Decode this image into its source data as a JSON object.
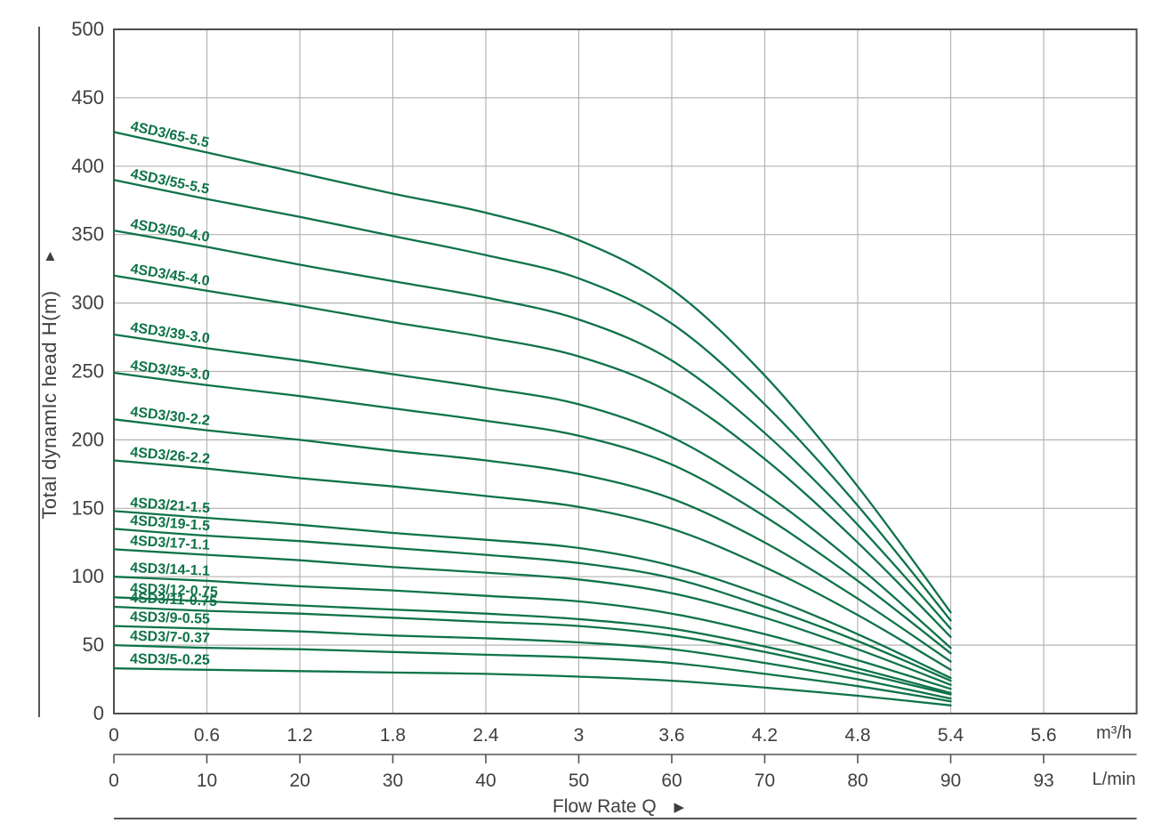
{
  "y_axis": {
    "title": "Total dynamIc head H(m)",
    "arrow_glyph": "▲",
    "ticks": [
      "500",
      "450",
      "400",
      "350",
      "300",
      "250",
      "200",
      "150",
      "100",
      "50",
      "0"
    ]
  },
  "x_axis": {
    "label": "Flow Rate Q",
    "arrow_glyph": "▶",
    "primary_ticks": [
      "0",
      "0.6",
      "1.2",
      "1.8",
      "2.4",
      "3",
      "3.6",
      "4.2",
      "4.8",
      "5.4",
      "5.6"
    ],
    "primary_unit": "m³/h",
    "secondary_ticks": [
      "0",
      "10",
      "20",
      "30",
      "40",
      "50",
      "60",
      "70",
      "80",
      "90",
      "93"
    ],
    "secondary_unit": "L/min"
  },
  "colors": {
    "curve": "#0e7349",
    "grid": "#b3b3b3",
    "border": "#4d4d4d",
    "text": "#3f3f3f",
    "axis_line": "#555555"
  },
  "chart_data": {
    "type": "line",
    "title": "",
    "xlabel": "Flow Rate Q",
    "ylabel": "Total dynamIc head H(m)",
    "x_units": [
      "m³/h",
      "L/min"
    ],
    "x": [
      0,
      0.6,
      1.2,
      1.8,
      2.4,
      3,
      3.6,
      4.2,
      4.8,
      5.4
    ],
    "x_lmin": [
      0,
      10,
      20,
      30,
      40,
      50,
      60,
      70,
      80,
      90
    ],
    "xlim": [
      0,
      5.6
    ],
    "ylim": [
      0,
      500
    ],
    "grid": true,
    "legend_position": "on-curve-labels",
    "series": [
      {
        "name": "4SD3/65-5.5",
        "values": [
          425,
          410,
          395,
          380,
          366,
          346,
          310,
          247,
          166,
          74
        ]
      },
      {
        "name": "4SD3/55-5.5",
        "values": [
          390,
          376,
          363,
          349,
          335,
          318,
          285,
          226,
          152,
          68
        ]
      },
      {
        "name": "4SD3/50-4.0",
        "values": [
          353,
          341,
          328,
          316,
          304,
          288,
          258,
          205,
          138,
          62
        ]
      },
      {
        "name": "4SD3/45-4.0",
        "values": [
          320,
          309,
          298,
          286,
          275,
          261,
          234,
          186,
          125,
          56
        ]
      },
      {
        "name": "4SD3/39-3.0",
        "values": [
          277,
          267,
          258,
          248,
          238,
          226,
          202,
          161,
          108,
          48
        ]
      },
      {
        "name": "4SD3/35-3.0",
        "values": [
          249,
          240,
          232,
          223,
          214,
          203,
          182,
          144,
          97,
          44
        ]
      },
      {
        "name": "4SD3/30-2.2",
        "values": [
          215,
          207,
          200,
          192,
          185,
          175,
          157,
          125,
          84,
          38
        ]
      },
      {
        "name": "4SD3/26-2.2",
        "values": [
          185,
          179,
          172,
          166,
          159,
          151,
          135,
          107,
          72,
          32
        ]
      },
      {
        "name": "4SD3/21-1.5",
        "values": [
          148,
          143,
          138,
          132,
          127,
          121,
          108,
          86,
          58,
          26
        ]
      },
      {
        "name": "4SD3/19-1.5",
        "values": [
          135,
          130,
          126,
          121,
          116,
          110,
          99,
          78,
          53,
          24
        ]
      },
      {
        "name": "4SD3/17-1.1",
        "values": [
          120,
          116,
          112,
          107,
          103,
          98,
          88,
          70,
          47,
          21
        ]
      },
      {
        "name": "4SD3/14-1.1",
        "values": [
          100,
          97,
          93,
          90,
          86,
          82,
          73,
          58,
          39,
          18
        ]
      },
      {
        "name": "4SD3/12-0.75",
        "values": [
          85,
          82,
          79,
          76,
          73,
          69,
          62,
          49,
          33,
          15
        ]
      },
      {
        "name": "4SD3/11-0.75",
        "values": [
          78,
          75,
          73,
          70,
          67,
          64,
          57,
          45,
          30,
          14
        ]
      },
      {
        "name": "4SD3/9-0.55",
        "values": [
          64,
          62,
          60,
          57,
          55,
          52,
          47,
          37,
          25,
          11
        ]
      },
      {
        "name": "4SD3/7-0.37",
        "values": [
          50,
          48,
          47,
          45,
          43,
          41,
          37,
          29,
          20,
          9
        ]
      },
      {
        "name": "4SD3/5-0.25",
        "values": [
          33,
          32,
          31,
          30,
          29,
          27,
          24,
          19,
          13,
          6
        ]
      }
    ]
  }
}
